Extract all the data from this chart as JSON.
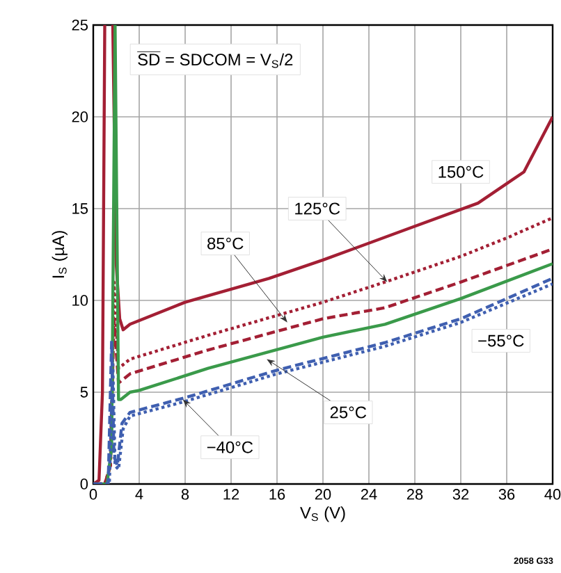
{
  "chart_data": {
    "type": "line",
    "xlabel": "V$_{S}$ (V)",
    "ylabel": "I$_{S}$ (µA)",
    "xlim": [
      0,
      40
    ],
    "ylim": [
      0,
      25
    ],
    "xticks": [
      0,
      4,
      8,
      12,
      16,
      20,
      24,
      28,
      32,
      36,
      40
    ],
    "yticks": [
      0,
      5,
      10,
      15,
      20,
      25
    ],
    "grid": true,
    "marker": "none",
    "series": [
      {
        "x": [
          0,
          0.5,
          0.8,
          1.0,
          1.35,
          1.7,
          2.0,
          2.3,
          2.6,
          3.2,
          8,
          15.3,
          20,
          27.4,
          33.5,
          37.5,
          40
        ],
        "values": [
          0,
          0.2,
          5,
          25,
          null,
          25,
          12,
          9.0,
          8.4,
          8.7,
          9.9,
          11.2,
          12.2,
          13.9,
          15.3,
          17.0,
          20.0
        ],
        "color": "#a31f34",
        "line_style": "solid"
      },
      {
        "x": [
          0,
          1.0,
          1.5,
          1.8,
          2.2,
          3.2,
          10,
          20,
          25.4,
          32,
          36,
          40
        ],
        "values": [
          0,
          0,
          1,
          11,
          6.3,
          6.8,
          8.1,
          9.9,
          11.0,
          12.4,
          13.4,
          14.5
        ],
        "color": "#a31f34",
        "line_style": "dotted"
      },
      {
        "x": [
          0,
          1.0,
          1.5,
          1.8,
          2.2,
          3.2,
          10,
          20,
          25.4,
          32,
          40
        ],
        "values": [
          0,
          0,
          1,
          9,
          5.5,
          6.0,
          7.3,
          9.0,
          9.6,
          11.0,
          12.8
        ],
        "color": "#a31f34",
        "line_style": "dashed"
      },
      {
        "x": [
          0,
          1.2,
          1.6,
          1.9,
          2.2,
          2.4,
          3.2,
          4,
          10,
          20,
          25.4,
          32,
          40
        ],
        "values": [
          0,
          0,
          2,
          25,
          4.6,
          4.6,
          5.0,
          5.1,
          6.3,
          8.0,
          8.7,
          10.1,
          12.0
        ],
        "color": "#3a9a4a",
        "line_style": "solid"
      },
      {
        "x": [
          0,
          1.3,
          1.6,
          1.8,
          2.1,
          2.5,
          3.2,
          8,
          16,
          25.4,
          32,
          40
        ],
        "values": [
          0,
          0,
          7.8,
          1.5,
          1.0,
          3.3,
          3.9,
          4.7,
          6.2,
          7.7,
          9.0,
          11.2
        ],
        "color": "#3f5fb0",
        "line_style": "dashed"
      },
      {
        "x": [
          0,
          1.4,
          1.7,
          1.9,
          2.2,
          2.6,
          3.2,
          8,
          16,
          25.4,
          32,
          40
        ],
        "values": [
          0,
          0,
          6.5,
          1.0,
          0.8,
          3.0,
          3.7,
          4.5,
          6.0,
          7.5,
          8.8,
          10.9
        ],
        "color": "#3f5fb0",
        "line_style": "dotted"
      }
    ],
    "annotations": [
      "SD",
      "= SDCOM = V$_{S}$/2",
      "150°C",
      {
        "text": "125°C",
        "x": 25.6,
        "y": 11.0
      },
      {
        "text": "85°C",
        "x": 16.9,
        "y": 8.8
      },
      {
        "text": "25°C",
        "x": 15.1,
        "y": 6.8
      },
      {
        "text": "−40°C",
        "x": 7.8,
        "y": 4.6
      },
      {
        "text": "−55°C",
        "x": 35.5,
        "y": 10.0
      },
      "2058 G33"
    ]
  }
}
